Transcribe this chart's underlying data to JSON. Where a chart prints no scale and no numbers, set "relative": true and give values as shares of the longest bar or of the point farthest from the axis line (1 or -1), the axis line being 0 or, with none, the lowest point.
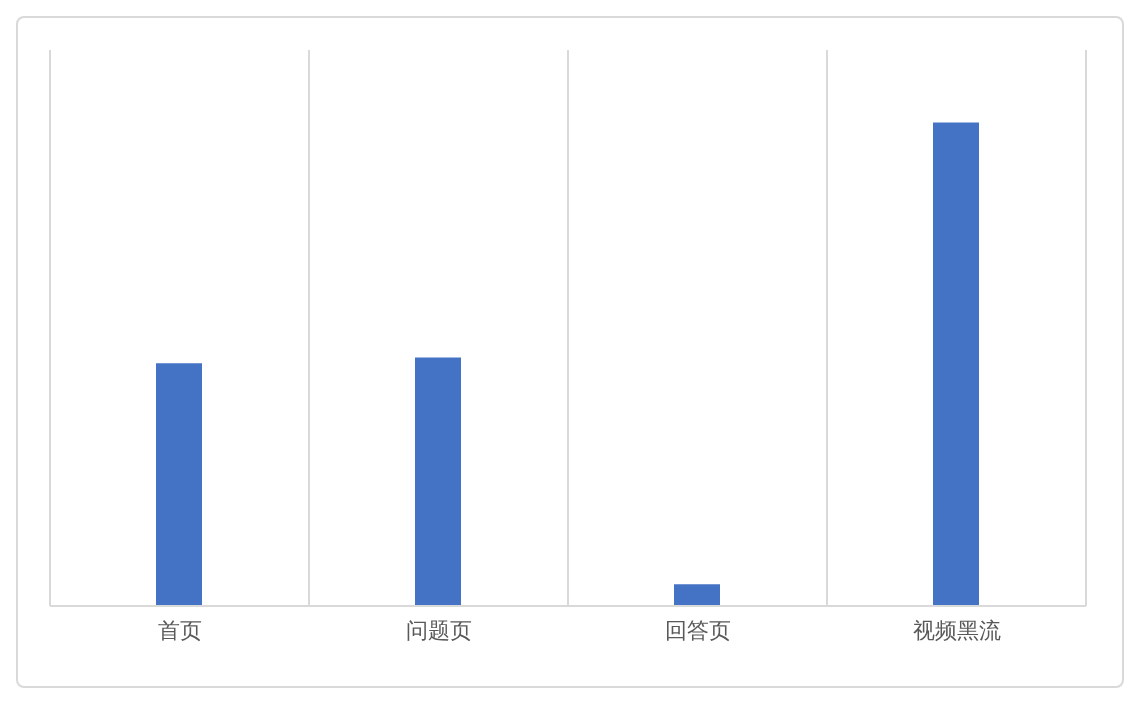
{
  "chart_data": {
    "type": "bar",
    "categories": [
      "首页",
      "问题页",
      "回答页",
      "视频黑流"
    ],
    "values": [
      0.502,
      0.514,
      0.045,
      1
    ],
    "color": "#4472c4",
    "relative": true,
    "grid": "x"
  }
}
